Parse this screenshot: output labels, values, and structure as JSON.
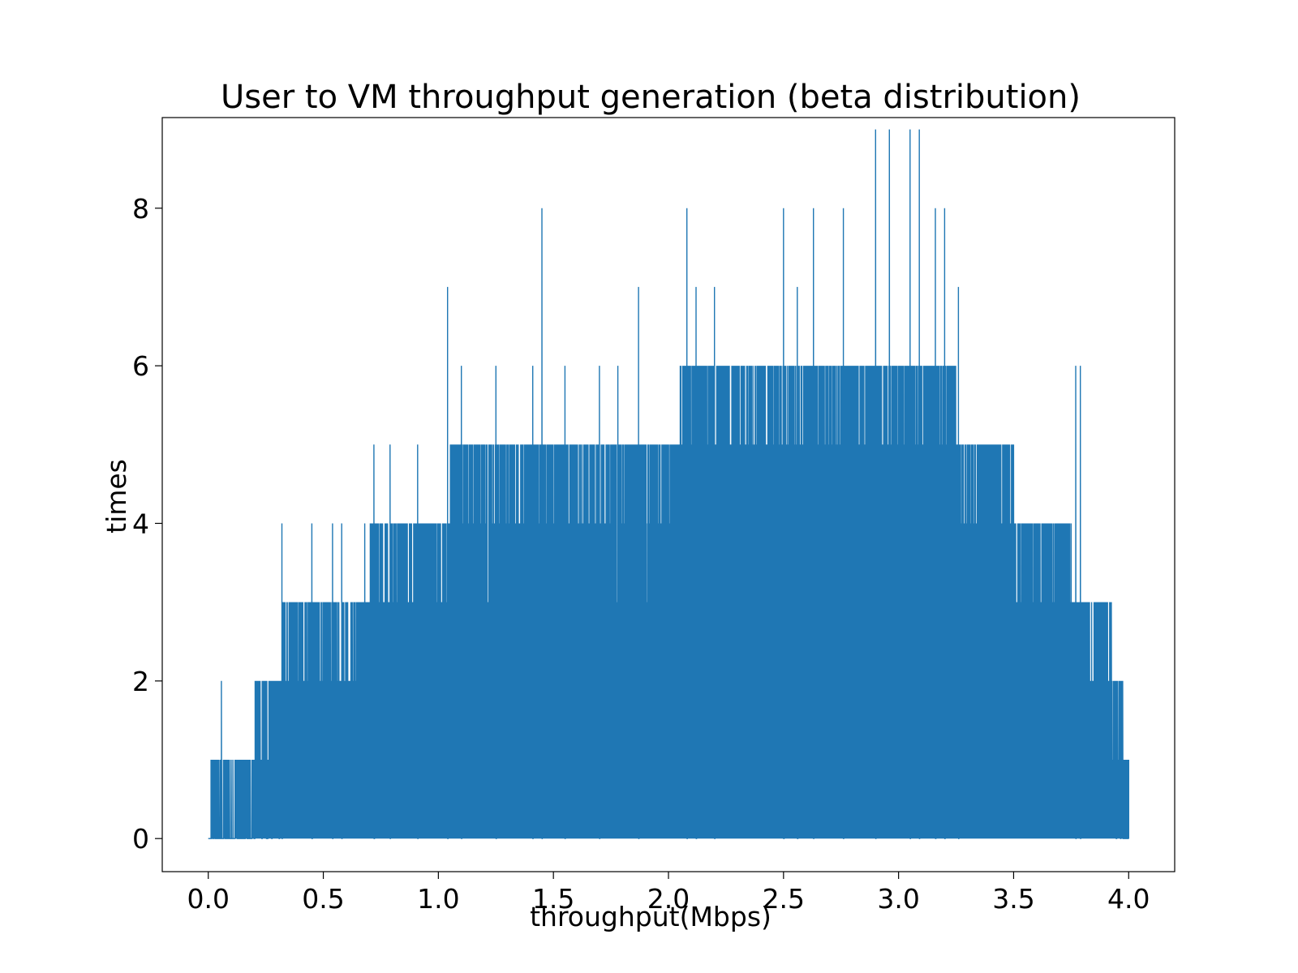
{
  "chart_data": {
    "type": "line",
    "title": "User to VM throughput generation (beta distribution)",
    "xlabel": "throughput(Mbps)",
    "ylabel": "times",
    "xlim": [
      -0.2,
      4.2
    ],
    "ylim": [
      -0.42,
      9.15
    ],
    "x_ticks": [
      0.0,
      0.5,
      1.0,
      1.5,
      2.0,
      2.5,
      3.0,
      3.5,
      4.0
    ],
    "x_tick_labels": [
      "0.0",
      "0.5",
      "1.0",
      "1.5",
      "2.0",
      "2.5",
      "3.0",
      "3.5",
      "4.0"
    ],
    "y_ticks": [
      0,
      2,
      4,
      6,
      8
    ],
    "y_tick_labels": [
      "0",
      "2",
      "4",
      "6",
      "8"
    ],
    "grid": false,
    "legend": "none",
    "series": [
      {
        "color": "#1f77b4",
        "description_of_envelope": "dense oscillation between 0 and an envelope of peak counts",
        "envelope": {
          "x": [
            0.0,
            0.02,
            0.05,
            0.15,
            0.25,
            0.3,
            0.35,
            0.5,
            0.65,
            0.75,
            0.9,
            1.0,
            1.1,
            1.3,
            1.5,
            1.7,
            1.85,
            2.0,
            2.1,
            2.3,
            2.5,
            2.7,
            2.9,
            3.0,
            3.1,
            3.2,
            3.3,
            3.45,
            3.55,
            3.7,
            3.8,
            3.9,
            3.95,
            4.0
          ],
          "y": [
            0,
            1,
            1,
            1,
            2,
            2,
            3,
            3,
            3,
            4,
            4,
            4,
            5,
            5,
            5,
            5,
            5,
            5,
            6,
            6,
            6,
            6,
            6,
            6,
            6,
            6,
            5,
            5,
            4,
            4,
            3,
            3,
            2,
            1
          ]
        },
        "peaks": [
          {
            "x": 0.057,
            "y": 2
          },
          {
            "x": 0.32,
            "y": 4
          },
          {
            "x": 0.45,
            "y": 4
          },
          {
            "x": 0.54,
            "y": 4
          },
          {
            "x": 0.58,
            "y": 4
          },
          {
            "x": 0.68,
            "y": 4
          },
          {
            "x": 0.72,
            "y": 5
          },
          {
            "x": 0.79,
            "y": 5
          },
          {
            "x": 0.91,
            "y": 5
          },
          {
            "x": 1.04,
            "y": 7
          },
          {
            "x": 1.1,
            "y": 6
          },
          {
            "x": 1.25,
            "y": 6
          },
          {
            "x": 1.41,
            "y": 6
          },
          {
            "x": 1.45,
            "y": 8
          },
          {
            "x": 1.55,
            "y": 6
          },
          {
            "x": 1.7,
            "y": 6
          },
          {
            "x": 1.78,
            "y": 6
          },
          {
            "x": 1.87,
            "y": 7
          },
          {
            "x": 2.08,
            "y": 8
          },
          {
            "x": 2.12,
            "y": 7
          },
          {
            "x": 2.2,
            "y": 7
          },
          {
            "x": 2.5,
            "y": 8
          },
          {
            "x": 2.56,
            "y": 7
          },
          {
            "x": 2.63,
            "y": 8
          },
          {
            "x": 2.76,
            "y": 8
          },
          {
            "x": 2.9,
            "y": 9
          },
          {
            "x": 2.96,
            "y": 9
          },
          {
            "x": 3.05,
            "y": 9
          },
          {
            "x": 3.09,
            "y": 9
          },
          {
            "x": 3.16,
            "y": 8
          },
          {
            "x": 3.2,
            "y": 8
          },
          {
            "x": 3.26,
            "y": 7
          },
          {
            "x": 3.77,
            "y": 6
          },
          {
            "x": 3.79,
            "y": 6
          }
        ]
      }
    ]
  }
}
